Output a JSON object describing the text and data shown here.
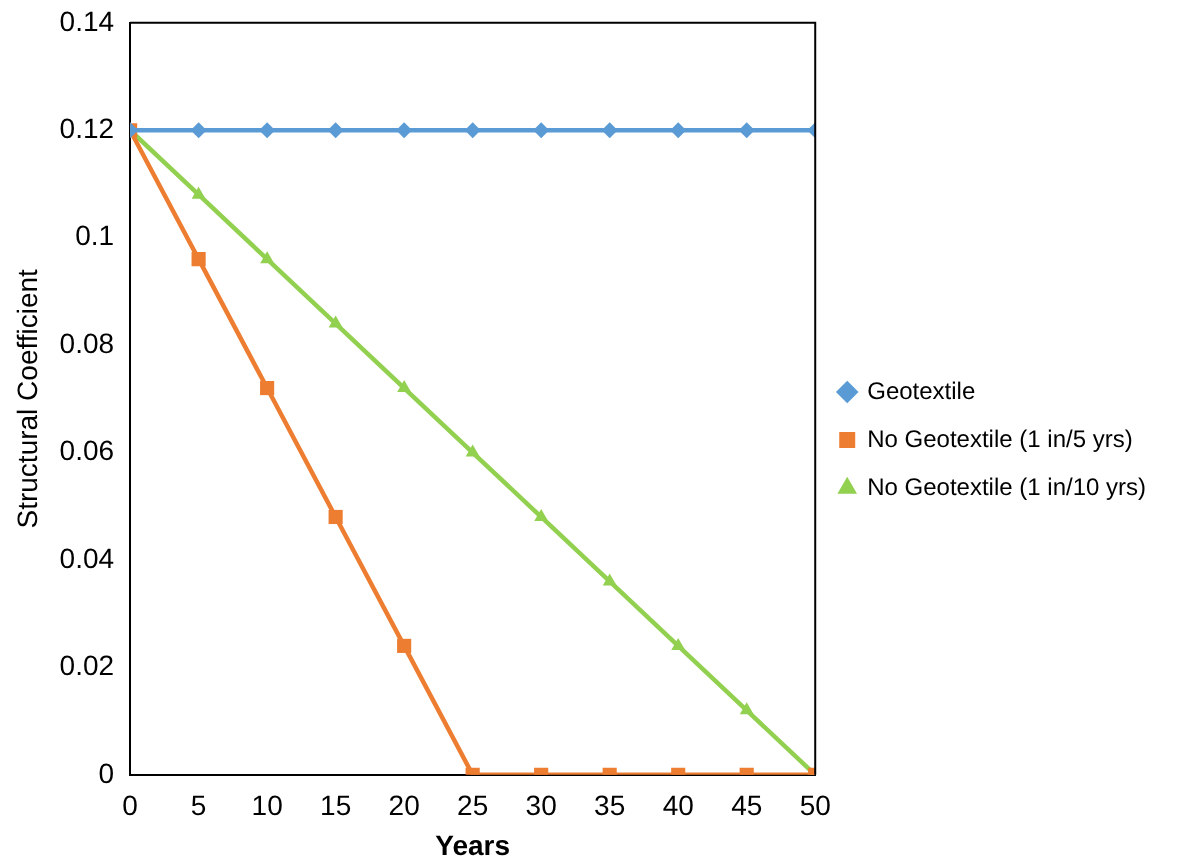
{
  "chart_data": {
    "type": "line",
    "xlabel": "Years",
    "ylabel": "Structural Coefficient",
    "x": [
      0,
      5,
      10,
      15,
      20,
      25,
      30,
      35,
      40,
      45,
      50
    ],
    "series": [
      {
        "name": "Geotextile",
        "color": "#5b9bd5",
        "marker": "diamond",
        "values": [
          0.12,
          0.12,
          0.12,
          0.12,
          0.12,
          0.12,
          0.12,
          0.12,
          0.12,
          0.12,
          0.12
        ]
      },
      {
        "name": "No Geotextile (1 in/5 yrs)",
        "color": "#ed7d31",
        "marker": "square",
        "values": [
          0.12,
          0.096,
          0.072,
          0.048,
          0.024,
          0,
          0,
          0,
          0,
          0,
          0
        ]
      },
      {
        "name": "No Geotextile (1 in/10 yrs)",
        "color": "#92d050",
        "marker": "triangle",
        "values": [
          0.12,
          0.108,
          0.096,
          0.084,
          0.072,
          0.06,
          0.048,
          0.036,
          0.024,
          0.012,
          0
        ]
      }
    ],
    "xlim": [
      0,
      50
    ],
    "xticks": [
      0,
      5,
      10,
      15,
      20,
      25,
      30,
      35,
      40,
      45,
      50
    ],
    "ylim": [
      0,
      0.14
    ],
    "yticks": [
      0,
      0.02,
      0.04,
      0.06,
      0.08,
      0.1,
      0.12,
      0.14
    ],
    "grid": false,
    "legend": "right",
    "line_style": "solid"
  }
}
